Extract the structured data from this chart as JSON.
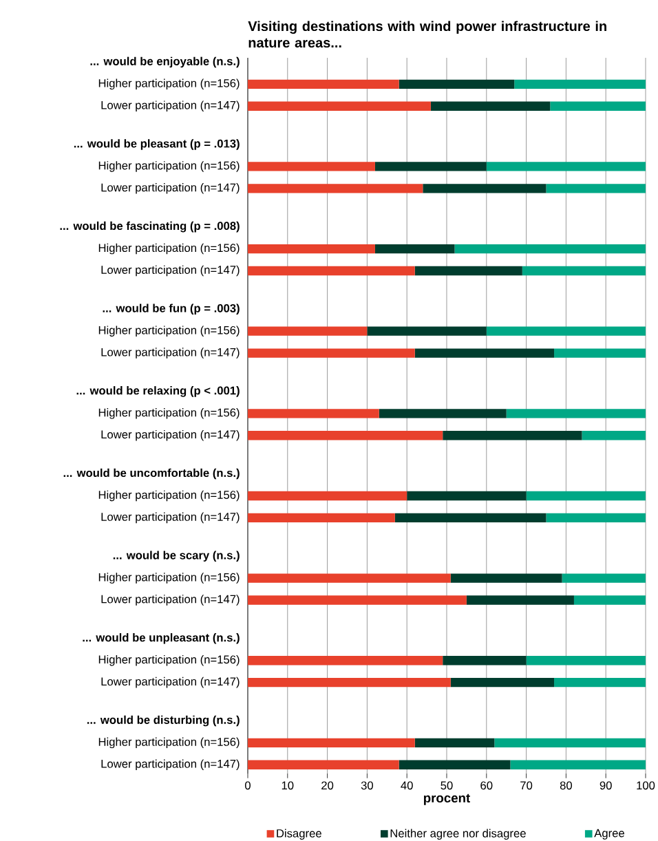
{
  "chart_data": {
    "type": "bar",
    "orientation": "horizontal",
    "stacked": true,
    "title": "Visiting destinations with wind power infrastructure in nature areas...",
    "xlabel": "procent",
    "categories": [
      "... would be enjoyable (n.s.)",
      "Higher participation (n=156)",
      "Lower participation (n=147)",
      "... would be pleasant (p = .013)",
      "Higher participation (n=156)",
      "Lower participation (n=147)",
      "... would be fascinating (p = .008)",
      "Higher participation (n=156)",
      "Lower participation (n=147)",
      "... would be fun (p = .003)",
      "Higher participation (n=156)",
      "Lower participation (n=147)",
      "... would be relaxing (p < .001)",
      "Higher participation (n=156)",
      "Lower participation (n=147)",
      "... would be uncomfortable (n.s.)",
      "Higher participation (n=156)",
      "Lower participation (n=147)",
      "... would be scary (n.s.)",
      "Higher participation (n=156)",
      "Lower participation (n=147)",
      "... would be unpleasant (n.s.)",
      "Higher participation (n=156)",
      "Lower participation (n=147)",
      "... would be disturbing (n.s.)",
      "Higher participation (n=156)",
      "Lower participation (n=147)"
    ],
    "series": [
      {
        "name": "Disagree",
        "color": "#e8412c",
        "values": [
          null,
          38,
          46,
          null,
          32,
          44,
          null,
          32,
          42,
          null,
          30,
          42,
          null,
          33,
          49,
          null,
          40,
          37,
          null,
          51,
          55,
          null,
          49,
          51,
          null,
          42,
          38
        ]
      },
      {
        "name": "Neither agree nor disagree",
        "color": "#003d2e",
        "values": [
          null,
          29,
          30,
          null,
          28,
          31,
          null,
          20,
          27,
          null,
          30,
          35,
          null,
          32,
          35,
          null,
          30,
          38,
          null,
          28,
          27,
          null,
          21,
          26,
          null,
          20,
          28
        ]
      },
      {
        "name": "Agree",
        "color": "#00a886",
        "values": [
          null,
          33,
          24,
          null,
          40,
          25,
          null,
          48,
          31,
          null,
          40,
          23,
          null,
          35,
          16,
          null,
          30,
          25,
          null,
          21,
          18,
          null,
          30,
          23,
          null,
          38,
          34
        ]
      }
    ],
    "xlim": [
      0,
      100
    ],
    "xticks": [
      0,
      10,
      20,
      30,
      40,
      50,
      60,
      70,
      80,
      90,
      100
    ],
    "grid": "x",
    "legend": "bottom"
  }
}
